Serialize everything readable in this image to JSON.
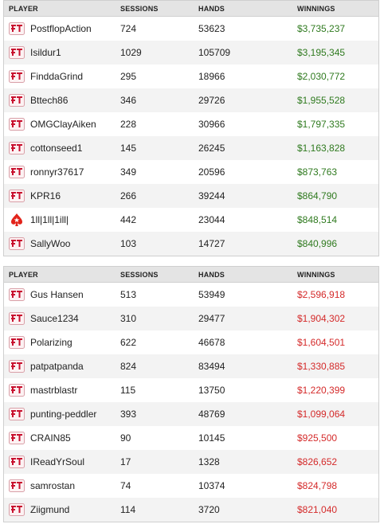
{
  "columns": {
    "player": "PLAYER",
    "sessions": "SESSIONS",
    "hands": "HANDS",
    "winnings": "WINNINGS"
  },
  "top_table": [
    {
      "player": "PostflopAction",
      "sessions": "724",
      "hands": "53623",
      "winnings": "$3,735,237",
      "site_icon": "full-tilt-logo-icon"
    },
    {
      "player": "Isildur1",
      "sessions": "1029",
      "hands": "105709",
      "winnings": "$3,195,345",
      "site_icon": "full-tilt-logo-icon"
    },
    {
      "player": "FinddaGrind",
      "sessions": "295",
      "hands": "18966",
      "winnings": "$2,030,772",
      "site_icon": "full-tilt-logo-icon"
    },
    {
      "player": "Bttech86",
      "sessions": "346",
      "hands": "29726",
      "winnings": "$1,955,528",
      "site_icon": "full-tilt-logo-icon"
    },
    {
      "player": "OMGClayAiken",
      "sessions": "228",
      "hands": "30966",
      "winnings": "$1,797,335",
      "site_icon": "full-tilt-logo-icon"
    },
    {
      "player": "cottonseed1",
      "sessions": "145",
      "hands": "26245",
      "winnings": "$1,163,828",
      "site_icon": "full-tilt-logo-icon"
    },
    {
      "player": "ronnyr37617",
      "sessions": "349",
      "hands": "20596",
      "winnings": "$873,763",
      "site_icon": "full-tilt-logo-icon"
    },
    {
      "player": "KPR16",
      "sessions": "266",
      "hands": "39244",
      "winnings": "$864,790",
      "site_icon": "full-tilt-logo-icon"
    },
    {
      "player": "1ll|1ll|1ill|",
      "sessions": "442",
      "hands": "23044",
      "winnings": "$848,514",
      "site_icon": "pokerstars-logo-icon"
    },
    {
      "player": "SallyWoo",
      "sessions": "103",
      "hands": "14727",
      "winnings": "$840,996",
      "site_icon": "full-tilt-logo-icon"
    }
  ],
  "bottom_table": [
    {
      "player": "Gus Hansen",
      "sessions": "513",
      "hands": "53949",
      "winnings": "$2,596,918",
      "site_icon": "full-tilt-logo-icon"
    },
    {
      "player": "Sauce1234",
      "sessions": "310",
      "hands": "29477",
      "winnings": "$1,904,302",
      "site_icon": "full-tilt-logo-icon"
    },
    {
      "player": "Polarizing",
      "sessions": "622",
      "hands": "46678",
      "winnings": "$1,604,501",
      "site_icon": "full-tilt-logo-icon"
    },
    {
      "player": "patpatpanda",
      "sessions": "824",
      "hands": "83494",
      "winnings": "$1,330,885",
      "site_icon": "full-tilt-logo-icon"
    },
    {
      "player": "mastrblastr",
      "sessions": "115",
      "hands": "13750",
      "winnings": "$1,220,399",
      "site_icon": "full-tilt-logo-icon"
    },
    {
      "player": "punting-peddler",
      "sessions": "393",
      "hands": "48769",
      "winnings": "$1,099,064",
      "site_icon": "full-tilt-logo-icon"
    },
    {
      "player": "CRAIN85",
      "sessions": "90",
      "hands": "10145",
      "winnings": "$925,500",
      "site_icon": "full-tilt-logo-icon"
    },
    {
      "player": "IReadYrSoul",
      "sessions": "17",
      "hands": "1328",
      "winnings": "$826,652",
      "site_icon": "full-tilt-logo-icon"
    },
    {
      "player": "samrostan",
      "sessions": "74",
      "hands": "10374",
      "winnings": "$824,798",
      "site_icon": "full-tilt-logo-icon"
    },
    {
      "player": "Ziigmund",
      "sessions": "114",
      "hands": "3720",
      "winnings": "$821,040",
      "site_icon": "full-tilt-logo-icon"
    }
  ],
  "colors": {
    "positive_winnings": "#2f7a1f",
    "negative_winnings": "#d42a2a",
    "full_tilt_red": "#c8102e",
    "pokerstars_red": "#e2231a"
  }
}
